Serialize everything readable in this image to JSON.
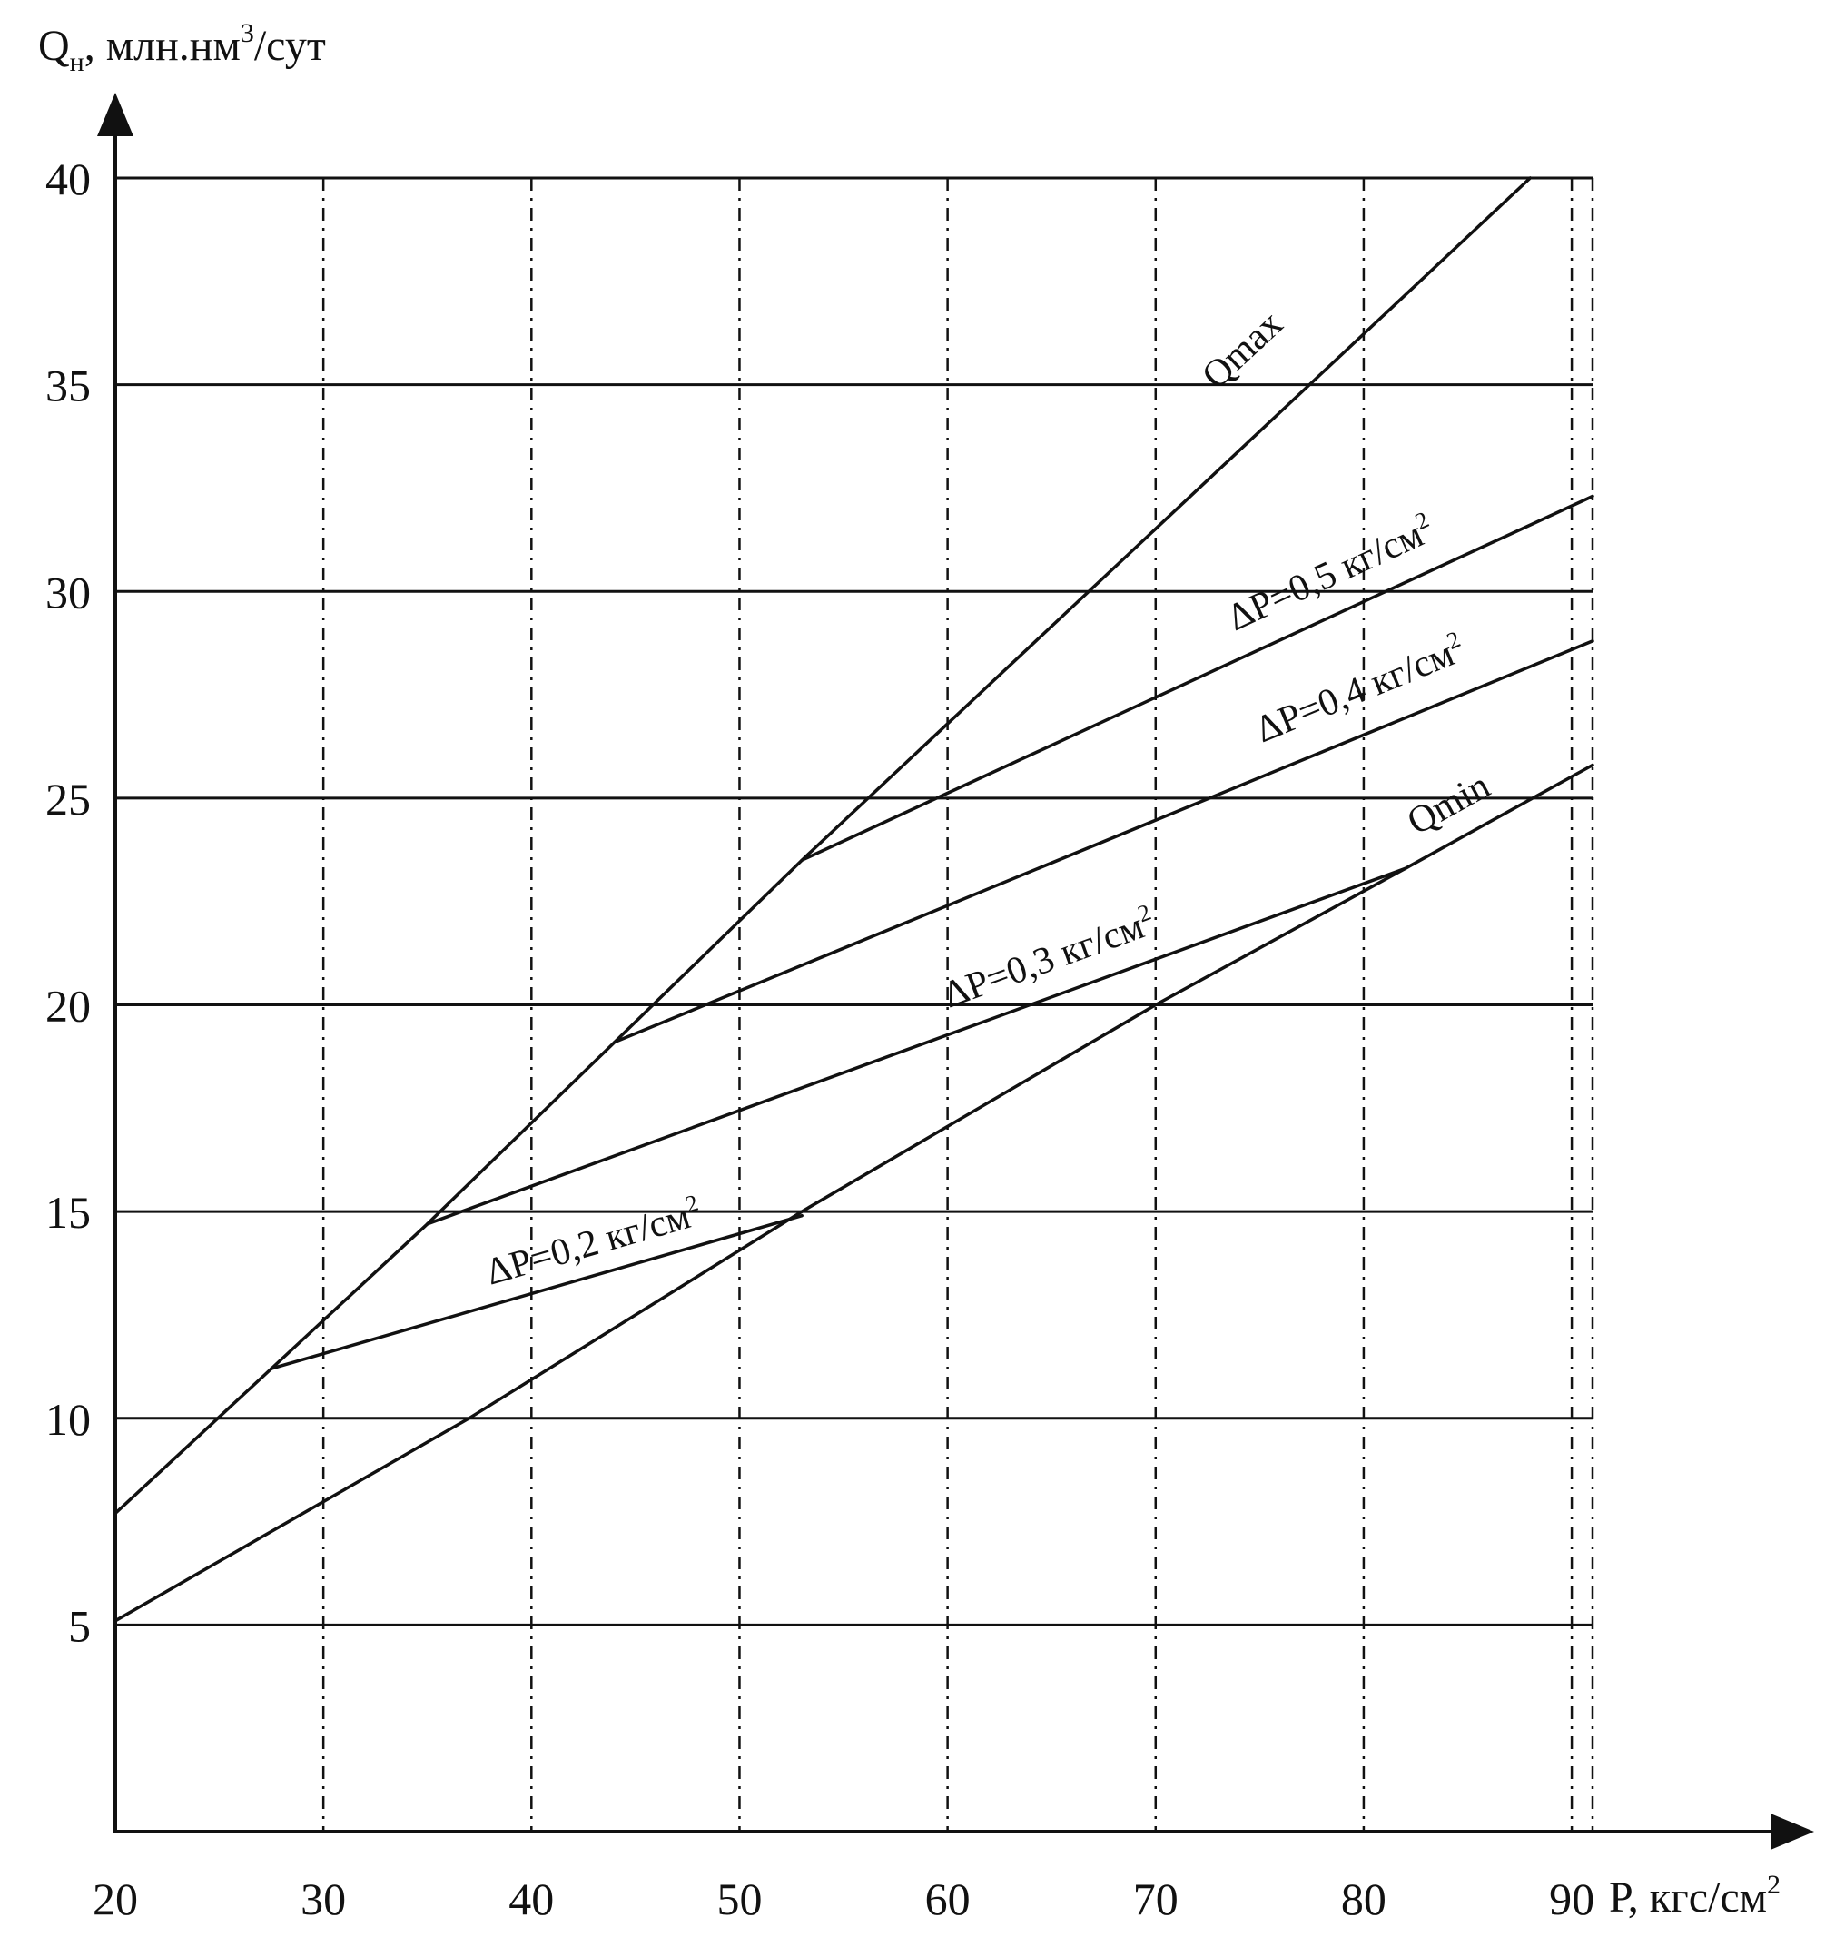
{
  "chart_data": {
    "type": "line",
    "title": "",
    "ylabel": {
      "base": "Q",
      "sub": "н",
      "mid": ", млн.нм",
      "sup": "3",
      "tail": "/сут"
    },
    "xlabel": {
      "base": "Р, кгс/см",
      "sup": "2"
    },
    "xlim": [
      20,
      91
    ],
    "ylim": [
      0,
      40
    ],
    "x_ticks": [
      "20",
      "30",
      "40",
      "50",
      "60",
      "70",
      "80",
      "90"
    ],
    "y_ticks": [
      "5",
      "10",
      "15",
      "20",
      "25",
      "30",
      "35",
      "40"
    ],
    "grid": true,
    "series": [
      {
        "name": "Qmax",
        "label": {
          "base": "Qmax",
          "sup": ""
        },
        "x": [
          20,
          27.5,
          35,
          44,
          53,
          88
        ],
        "y": [
          7.7,
          11.2,
          14.7,
          19.1,
          23.5,
          40
        ]
      },
      {
        "name": "Qmin",
        "label": {
          "base": "Qmin",
          "sup": ""
        },
        "x": [
          20,
          37,
          53,
          70,
          82,
          91
        ],
        "y": [
          5.1,
          10,
          15,
          20,
          23.3,
          25.8
        ]
      },
      {
        "name": "ΔP=0,2 кг/см2",
        "label": {
          "base": "ΔP=0,2 кг/см",
          "sup": "2"
        },
        "x": [
          27.5,
          53
        ],
        "y": [
          11.2,
          14.9
        ]
      },
      {
        "name": "ΔP=0,3 кг/см2",
        "label": {
          "base": "ΔP=0,3 кг/см",
          "sup": "2"
        },
        "x": [
          35,
          82
        ],
        "y": [
          14.7,
          23.3
        ]
      },
      {
        "name": "ΔP=0,4 кг/см2",
        "label": {
          "base": "ΔP=0,4 кг/см",
          "sup": "2"
        },
        "x": [
          44,
          91
        ],
        "y": [
          19.1,
          28.8
        ]
      },
      {
        "name": "ΔP=0,5 кг/см2",
        "label": {
          "base": "ΔP=0,5 кг/см",
          "sup": "2"
        },
        "x": [
          53,
          91
        ],
        "y": [
          23.5,
          32.3
        ]
      }
    ]
  }
}
